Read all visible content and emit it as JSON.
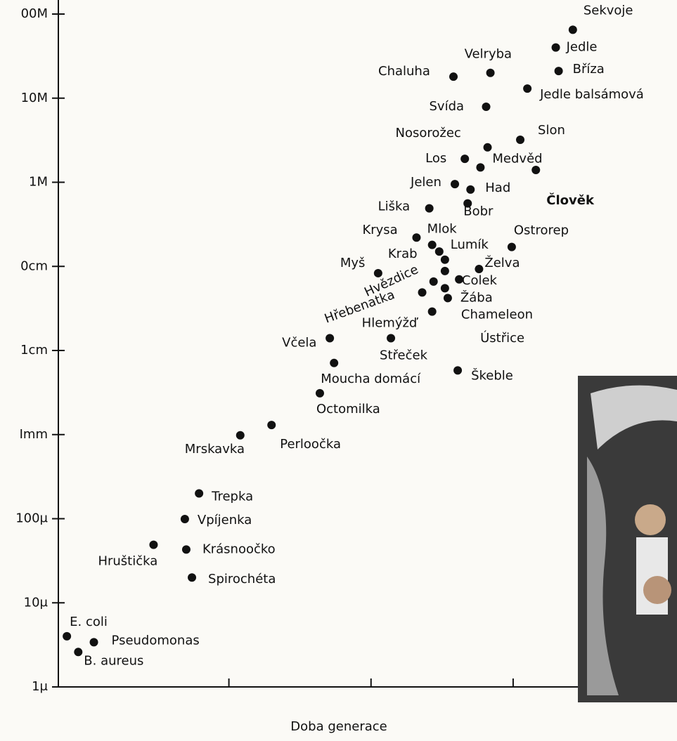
{
  "chart_data": {
    "type": "scatter",
    "x_label": "Doba generace",
    "labels": [
      "Sekvoje",
      "Jedle",
      "Bříza",
      "Jedle balsámová",
      "Velryba",
      "Chaluha",
      "Svída",
      "Slon",
      "Nosorožec",
      "Los",
      "Medvěd",
      "Člověk",
      "Jelen",
      "Had",
      "Liška",
      "Bobr",
      "Krysa",
      "Mlok",
      "Ostrorep",
      "Lumík",
      "Krab",
      "Myš",
      "Želva",
      "Hvězdice",
      "Colek",
      "Ústřice",
      "Žába",
      "Hřebenatka",
      "Chameleon",
      "Hlemýžď",
      "Včela",
      "Střeček",
      "Moucha domácí",
      "Škeble",
      "Octomilka",
      "Perloočka",
      "Mrskavka",
      "Trepka",
      "Vpíjenka",
      "Hruštička",
      "Krásnoočko",
      "Spirochéta",
      "E. coli",
      "Pseudomonas",
      "B. aureus"
    ],
    "x": [
      3.42,
      3.3,
      3.32,
      3.1,
      2.84,
      2.58,
      2.81,
      3.05,
      2.82,
      2.66,
      2.77,
      3.16,
      2.59,
      2.7,
      2.41,
      2.68,
      2.32,
      2.43,
      2.99,
      2.48,
      2.52,
      2.05,
      2.76,
      2.44,
      2.52,
      2.62,
      2.54,
      2.36,
      2.52,
      2.43,
      1.71,
      2.14,
      1.74,
      2.61,
      1.64,
      1.3,
      1.08,
      0.79,
      0.69,
      0.47,
      0.7,
      0.74,
      -0.14,
      0.05,
      -0.06
    ],
    "values": [
      65,
      40,
      21,
      13,
      20,
      18,
      7.9,
      3.2,
      2.6,
      1.9,
      1.5,
      1.4,
      0.95,
      0.82,
      0.49,
      0.56,
      0.22,
      0.18,
      0.17,
      0.15,
      0.12,
      0.083,
      0.093,
      0.066,
      0.088,
      0.07,
      0.042,
      0.049,
      0.055,
      0.029,
      0.014,
      0.014,
      0.0071,
      0.0058,
      0.0031,
      0.0013,
      0.00098,
      0.0002,
      9.9e-05,
      4.9e-05,
      4.3e-05,
      2e-05,
      4e-06,
      3.4e-06,
      2.6e-06
    ],
    "label_colors": [
      "#111",
      "#111",
      "#111",
      "#111",
      "#111",
      "#111",
      "#111",
      "#111",
      "#111",
      "#111",
      "#111",
      "#e01010",
      "#111",
      "#111",
      "#111",
      "#111",
      "#111",
      "#111",
      "#111",
      "#111",
      "#111",
      "#111",
      "#111",
      "#111",
      "#111",
      "#111",
      "#111",
      "#111",
      "#111",
      "#111",
      "#111",
      "#111",
      "#111",
      "#111",
      "#111",
      "#111",
      "#111",
      "#111",
      "#111",
      "#111",
      "#111",
      "#111",
      "#111",
      "#111",
      "#111"
    ],
    "color": "#111",
    "log_y": true,
    "ylim": [
      1e-06,
      100
    ],
    "yticks": [
      {
        "value": 100,
        "label": "00M"
      },
      {
        "value": 10,
        "label": "10M"
      },
      {
        "value": 1,
        "label": "1M"
      },
      {
        "value": 0.1,
        "label": "0cm"
      },
      {
        "value": 0.01,
        "label": "1cm"
      },
      {
        "value": 0.001,
        "label": "Imm"
      },
      {
        "value": 0.0001,
        "label": "100μ"
      },
      {
        "value": 1e-05,
        "label": "10μ"
      },
      {
        "value": 1e-06,
        "label": "1μ"
      }
    ],
    "xlim": [
      -0.2,
      3.5
    ],
    "xticks": [
      1,
      2,
      3
    ]
  }
}
